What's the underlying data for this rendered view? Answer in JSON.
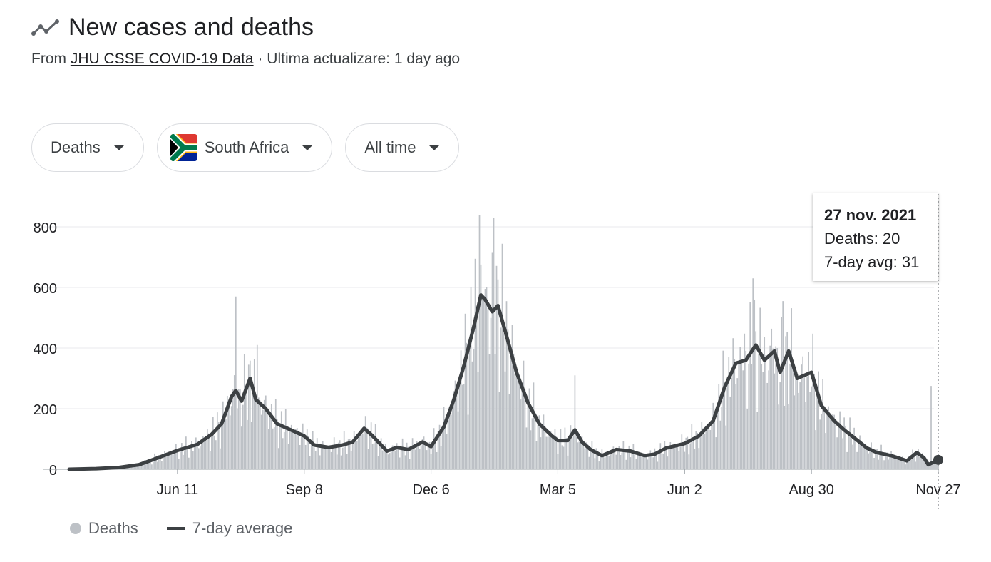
{
  "header": {
    "title": "New cases and deaths",
    "from_label": "From",
    "source_link": "JHU CSSE COVID-19 Data",
    "separator": "·",
    "updated_text": "Ultima actualizare: 1 day ago"
  },
  "filters": {
    "metric": "Deaths",
    "country": "South Africa",
    "range": "All time"
  },
  "tooltip": {
    "date": "27 nov. 2021",
    "deaths_label": "Deaths: 20",
    "avg_label": "7-day avg: 31"
  },
  "legend": {
    "deaths": "Deaths",
    "average": "7-day average"
  },
  "colors": {
    "bars": "#bdc1c6",
    "line": "#3c4043",
    "grid": "#e8eaed",
    "flag_green": "#007a4d",
    "flag_red": "#de3831",
    "flag_blue": "#002395",
    "flag_gold": "#ffb612"
  },
  "chart_data": {
    "type": "bar",
    "xlabel": "",
    "ylabel": "",
    "ylim": [
      0,
      800
    ],
    "yticks": [
      0,
      200,
      400,
      600,
      800
    ],
    "xticks": [
      "Jun 11",
      "Sep 8",
      "Dec 6",
      "Mar 5",
      "Jun 2",
      "Aug 30",
      "Nov 27"
    ],
    "x_range": [
      "2020-03-27",
      "2021-11-27"
    ],
    "grid": true,
    "legend_position": "bottom-left",
    "series": [
      {
        "name": "7-day average",
        "kind": "line",
        "points": [
          [
            "2020-03-27",
            0
          ],
          [
            "2020-04-15",
            2
          ],
          [
            "2020-05-01",
            6
          ],
          [
            "2020-05-15",
            15
          ],
          [
            "2020-05-25",
            32
          ],
          [
            "2020-06-11",
            62
          ],
          [
            "2020-06-25",
            82
          ],
          [
            "2020-07-05",
            115
          ],
          [
            "2020-07-12",
            150
          ],
          [
            "2020-07-19",
            240
          ],
          [
            "2020-07-22",
            260
          ],
          [
            "2020-07-26",
            225
          ],
          [
            "2020-08-01",
            300
          ],
          [
            "2020-08-05",
            230
          ],
          [
            "2020-08-12",
            200
          ],
          [
            "2020-08-20",
            150
          ],
          [
            "2020-09-01",
            125
          ],
          [
            "2020-09-08",
            110
          ],
          [
            "2020-09-15",
            80
          ],
          [
            "2020-09-25",
            72
          ],
          [
            "2020-10-05",
            80
          ],
          [
            "2020-10-12",
            90
          ],
          [
            "2020-10-20",
            135
          ],
          [
            "2020-10-26",
            110
          ],
          [
            "2020-11-05",
            60
          ],
          [
            "2020-11-12",
            72
          ],
          [
            "2020-11-20",
            65
          ],
          [
            "2020-11-30",
            90
          ],
          [
            "2020-12-06",
            75
          ],
          [
            "2020-12-15",
            140
          ],
          [
            "2020-12-22",
            230
          ],
          [
            "2020-12-29",
            340
          ],
          [
            "2021-01-05",
            470
          ],
          [
            "2021-01-10",
            575
          ],
          [
            "2021-01-13",
            560
          ],
          [
            "2021-01-18",
            520
          ],
          [
            "2021-01-22",
            540
          ],
          [
            "2021-01-28",
            440
          ],
          [
            "2021-02-04",
            320
          ],
          [
            "2021-02-12",
            220
          ],
          [
            "2021-02-20",
            150
          ],
          [
            "2021-03-01",
            110
          ],
          [
            "2021-03-05",
            95
          ],
          [
            "2021-03-12",
            95
          ],
          [
            "2021-03-17",
            130
          ],
          [
            "2021-03-22",
            90
          ],
          [
            "2021-03-28",
            65
          ],
          [
            "2021-04-05",
            45
          ],
          [
            "2021-04-15",
            65
          ],
          [
            "2021-04-25",
            60
          ],
          [
            "2021-05-05",
            45
          ],
          [
            "2021-05-12",
            50
          ],
          [
            "2021-05-20",
            70
          ],
          [
            "2021-06-02",
            85
          ],
          [
            "2021-06-12",
            110
          ],
          [
            "2021-06-22",
            160
          ],
          [
            "2021-06-30",
            270
          ],
          [
            "2021-07-08",
            350
          ],
          [
            "2021-07-15",
            360
          ],
          [
            "2021-07-22",
            410
          ],
          [
            "2021-07-28",
            360
          ],
          [
            "2021-08-04",
            390
          ],
          [
            "2021-08-08",
            320
          ],
          [
            "2021-08-14",
            390
          ],
          [
            "2021-08-20",
            300
          ],
          [
            "2021-08-30",
            320
          ],
          [
            "2021-09-06",
            210
          ],
          [
            "2021-09-15",
            160
          ],
          [
            "2021-09-22",
            130
          ],
          [
            "2021-09-30",
            100
          ],
          [
            "2021-10-08",
            70
          ],
          [
            "2021-10-15",
            55
          ],
          [
            "2021-10-25",
            45
          ],
          [
            "2021-11-05",
            28
          ],
          [
            "2021-11-12",
            55
          ],
          [
            "2021-11-17",
            38
          ],
          [
            "2021-11-20",
            15
          ],
          [
            "2021-11-27",
            31
          ]
        ]
      },
      {
        "name": "Deaths",
        "kind": "bar",
        "peaks": [
          [
            "2020-07-22",
            570
          ],
          [
            "2020-08-06",
            410
          ],
          [
            "2021-01-09",
            840
          ],
          [
            "2021-01-19",
            830
          ],
          [
            "2021-03-17",
            310
          ],
          [
            "2021-07-20",
            630
          ],
          [
            "2021-08-10",
            555
          ],
          [
            "2021-11-22",
            275
          ],
          [
            "2021-11-27",
            20
          ]
        ]
      }
    ]
  }
}
